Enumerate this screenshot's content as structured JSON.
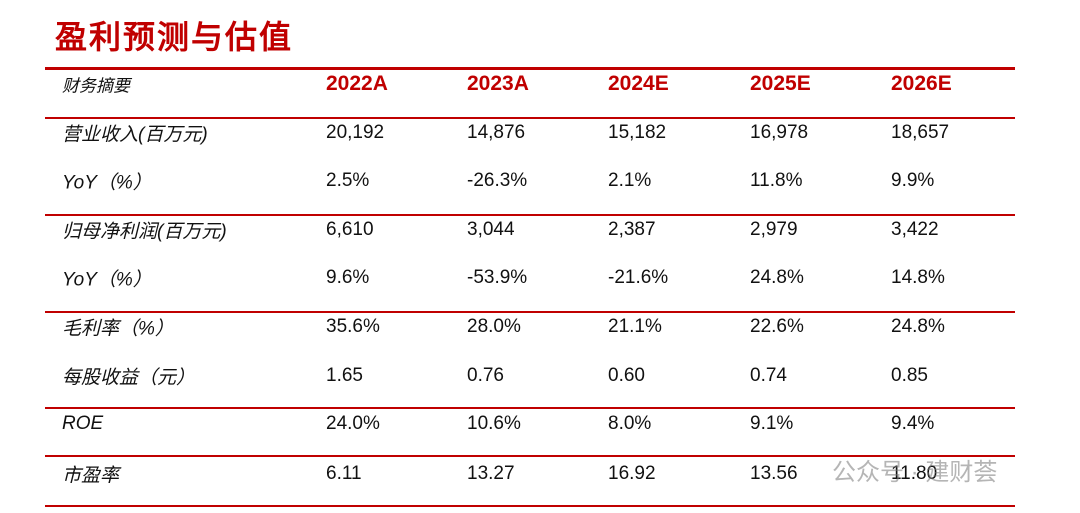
{
  "header": {
    "title": "盈利预测与估值"
  },
  "table": {
    "columns": [
      "财务摘要",
      "2022A",
      "2023A",
      "2024E",
      "2025E",
      "2026E"
    ],
    "rows": [
      [
        "营业收入(百万元)",
        "20,192",
        "14,876",
        "15,182",
        "16,978",
        "18,657"
      ],
      [
        "YoY（%）",
        "2.5%",
        "-26.3%",
        "2.1%",
        "11.8%",
        "9.9%"
      ],
      [
        "归母净利润(百万元)",
        "6,610",
        "3,044",
        "2,387",
        "2,979",
        "3,422"
      ],
      [
        "YoY（%）",
        "9.6%",
        "-53.9%",
        "-21.6%",
        "24.8%",
        "14.8%"
      ],
      [
        "毛利率（%）",
        "35.6%",
        "28.0%",
        "21.1%",
        "22.6%",
        "24.8%"
      ],
      [
        "每股收益（元）",
        "1.65",
        "0.76",
        "0.60",
        "0.74",
        "0.85"
      ],
      [
        "ROE",
        "24.0%",
        "10.6%",
        "8.0%",
        "9.1%",
        "9.4%"
      ],
      [
        "市盈率",
        "6.11",
        "13.27",
        "16.92",
        "13.56",
        "11.80"
      ]
    ]
  },
  "watermark": "公众号 · 建财荟"
}
